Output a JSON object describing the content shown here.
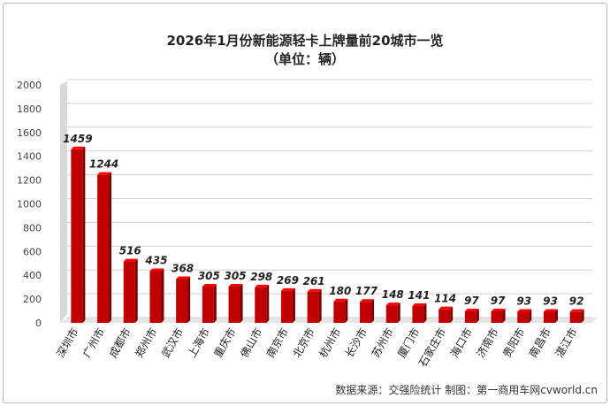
{
  "chart_data": {
    "type": "bar",
    "title": "2026年1月份新能源轻卡上牌量前20城市一览",
    "subtitle": "（单位：辆）",
    "categories": [
      "深圳市",
      "广州市",
      "成都市",
      "郑州市",
      "武汉市",
      "上海市",
      "重庆市",
      "佛山市",
      "南京市",
      "北京市",
      "杭州市",
      "长沙市",
      "苏州市",
      "厦门市",
      "石家庄市",
      "海口市",
      "济南市",
      "贵阳市",
      "南昌市",
      "湛江市"
    ],
    "values": [
      1459,
      1244,
      516,
      435,
      368,
      305,
      305,
      298,
      269,
      261,
      180,
      177,
      148,
      141,
      114,
      97,
      97,
      93,
      93,
      92
    ],
    "ylim": [
      0,
      2000
    ],
    "yticks": [
      0,
      200,
      400,
      600,
      800,
      1000,
      1200,
      1400,
      1600,
      1800,
      2000
    ],
    "grid": true,
    "bar_color": "#c00000",
    "source": "数据来源：交强险统计  制图：第一商用车网cvworld.cn"
  }
}
